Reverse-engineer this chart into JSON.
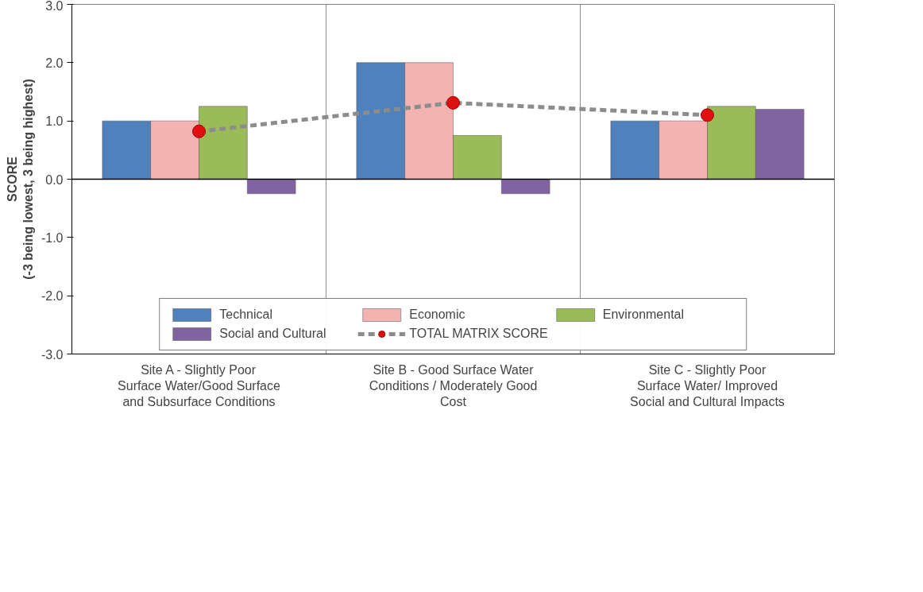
{
  "chart_data": {
    "type": "bar",
    "ylabel": "SCORE\n(-3 being lowest, 3 being highest)",
    "categories": [
      "Site A - Slightly Poor Surface Water/Good Surface and Subsurface Conditions",
      "Site B - Good Surface Water Conditions / Moderately Good Cost",
      "Site C - Slightly Poor Surface Water/ Improved Social and Cultural Impacts"
    ],
    "series": [
      {
        "name": "Technical",
        "color": "#4f81bd",
        "values": [
          1.0,
          2.0,
          1.0
        ]
      },
      {
        "name": "Economic",
        "color": "#f2b3b1",
        "values": [
          1.0,
          2.0,
          1.0
        ]
      },
      {
        "name": "Environmental",
        "color": "#9bbb59",
        "values": [
          1.25,
          0.75,
          1.25
        ]
      },
      {
        "name": "Social and Cultural",
        "color": "#8064a2",
        "values": [
          -0.25,
          -0.25,
          1.2
        ]
      },
      {
        "name": "TOTAL MATRIX SCORE",
        "type": "line",
        "color": "#8c8c8c",
        "marker": "circle",
        "line_style": "dashed",
        "values": [
          0.82,
          1.31,
          1.1
        ]
      }
    ],
    "ylim": [
      -3,
      3
    ],
    "yticks": [
      {
        "value": -3,
        "label": "-3.0"
      },
      {
        "value": -2,
        "label": "-2.0"
      },
      {
        "value": -1,
        "label": "-1.0"
      },
      {
        "value": 0,
        "label": "0.0"
      },
      {
        "value": 1,
        "label": "1.0"
      },
      {
        "value": 2,
        "label": "2.0"
      },
      {
        "value": 3,
        "label": "3.0"
      }
    ],
    "grid": "x",
    "legend": "bottom"
  }
}
